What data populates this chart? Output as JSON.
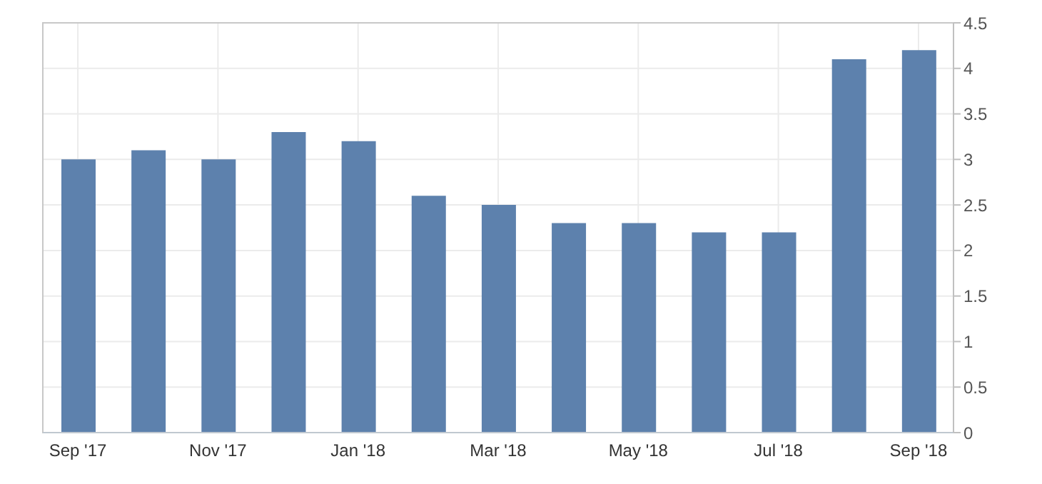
{
  "chart_data": {
    "type": "bar",
    "categories": [
      "Sep '17",
      null,
      "Nov '17",
      null,
      "Jan '18",
      null,
      "Mar '18",
      null,
      "May '18",
      null,
      "Jul '18",
      null,
      "Sep '18"
    ],
    "values": [
      3.0,
      3.1,
      3.0,
      3.3,
      3.2,
      2.6,
      2.5,
      2.3,
      2.3,
      2.2,
      2.2,
      4.1,
      4.2
    ],
    "color": "#5d81ad",
    "ylim": [
      0,
      4.5
    ],
    "yticks": [
      0,
      0.5,
      1,
      1.5,
      2,
      2.5,
      3,
      3.5,
      4,
      4.5
    ],
    "grid": true
  }
}
